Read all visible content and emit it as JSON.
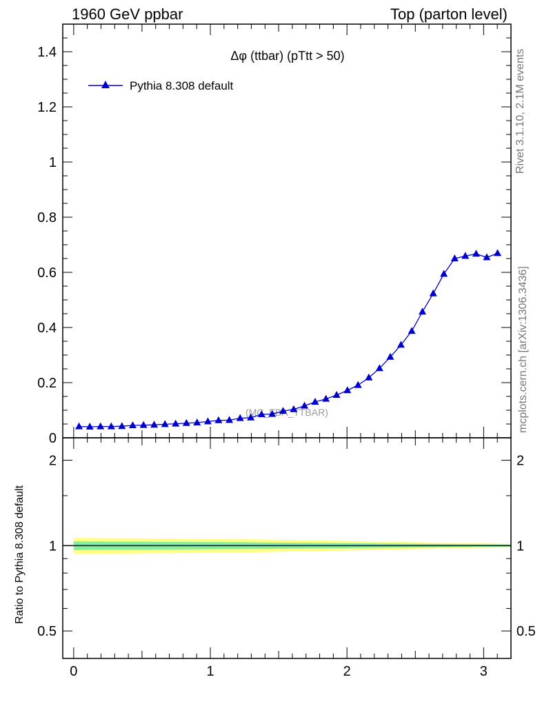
{
  "header": {
    "left": "1960 GeV ppbar",
    "right": "Top (parton level)"
  },
  "side_labels": {
    "rivet": "Rivet 3.1.10,  2.1M events",
    "mcplots": "mcplots.cern.ch [arXiv:1306.3436]"
  },
  "chart_data": {
    "type": "line",
    "title": "Δφ (ttbar) (pTtt > 50)",
    "watermark": "(MC_FBA_TTBAR)",
    "xlim": [
      -0.08,
      3.2
    ],
    "ylim": [
      0,
      1.5
    ],
    "x_ticks": [
      "0",
      "1",
      "2",
      "3"
    ],
    "y_ticks": [
      "0",
      "0.2",
      "0.4",
      "0.6",
      "0.8",
      "1",
      "1.2",
      "1.4"
    ],
    "legend_position": "top-left",
    "series": [
      {
        "name": "Pythia 8.308 default",
        "color": "#0000cc",
        "marker": "triangle-up",
        "x": [
          0.039,
          0.118,
          0.196,
          0.275,
          0.353,
          0.432,
          0.511,
          0.589,
          0.668,
          0.746,
          0.825,
          0.903,
          0.982,
          1.06,
          1.139,
          1.218,
          1.296,
          1.375,
          1.453,
          1.532,
          1.61,
          1.689,
          1.767,
          1.846,
          1.924,
          2.003,
          2.081,
          2.16,
          2.238,
          2.317,
          2.395,
          2.474,
          2.552,
          2.631,
          2.709,
          2.788,
          2.866,
          2.945,
          3.023,
          3.102
        ],
        "values": [
          0.041,
          0.04,
          0.041,
          0.041,
          0.042,
          0.045,
          0.046,
          0.047,
          0.049,
          0.051,
          0.053,
          0.055,
          0.059,
          0.063,
          0.064,
          0.071,
          0.073,
          0.085,
          0.086,
          0.097,
          0.103,
          0.116,
          0.13,
          0.141,
          0.155,
          0.172,
          0.191,
          0.218,
          0.252,
          0.293,
          0.337,
          0.387,
          0.457,
          0.523,
          0.594,
          0.65,
          0.659,
          0.667,
          0.654,
          0.669
        ]
      }
    ],
    "ratio_panel": {
      "ylabel": "Ratio to Pythia 8.308 default",
      "ylim": [
        0.4,
        2.4
      ],
      "y_ticks": [
        "0.5",
        "1",
        "2"
      ],
      "reference_value": 1,
      "band_green_halfwidth": [
        0.035,
        0.008
      ],
      "band_yellow_halfwidth": [
        0.065,
        0.014
      ],
      "colors": {
        "green": "#88ee99",
        "yellow": "#ffff88"
      }
    }
  }
}
